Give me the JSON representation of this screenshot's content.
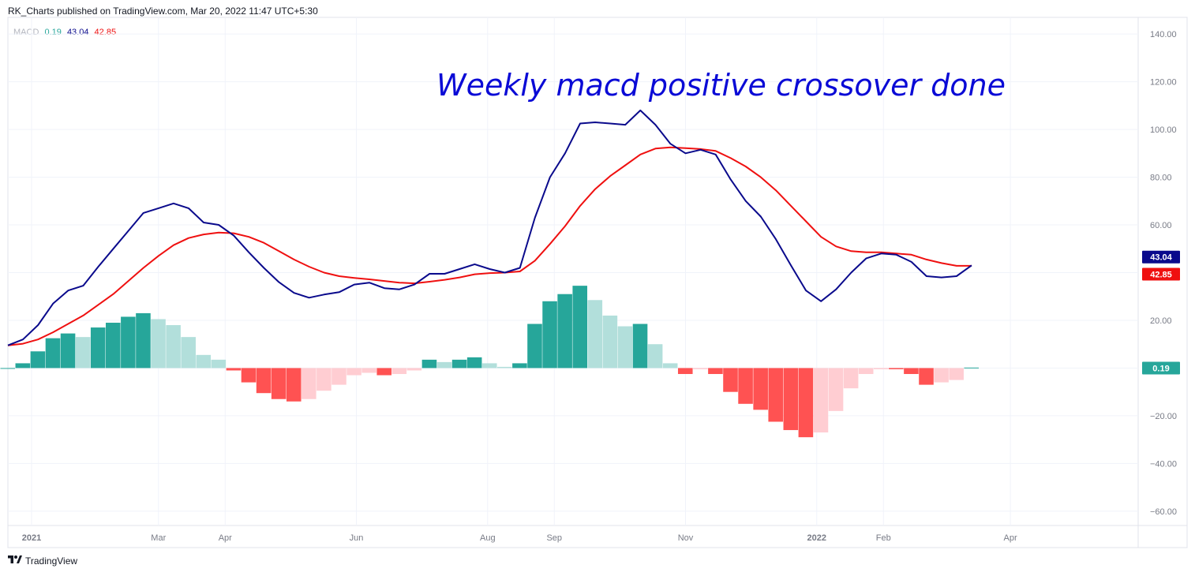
{
  "header": {
    "text": "RK_Charts published on TradingView.com, Mar 20, 2022 11:47 UTC+5:30"
  },
  "legend": {
    "name": "MACD",
    "hist_value": "0.19",
    "macd_value": "43.04",
    "signal_value": "42.85"
  },
  "annotation": "Weekly macd positive crossover done",
  "footer": {
    "brand": "TradingView",
    "logo_icon": "tradingview-logo-icon"
  },
  "colors": {
    "macd": "#0a0a8c",
    "signal": "#ef1010",
    "hist_up_strong": "#26a69a",
    "hist_up_weak": "#b2dfdb",
    "hist_down_strong": "#ff5252",
    "hist_down_weak": "#ffcdd2",
    "grid": "#f0f3fa",
    "axis_text": "#787b86",
    "annotation": "#0a0ad6"
  },
  "chart_data": {
    "type": "line",
    "title": "",
    "xlabel": "",
    "ylabel": "",
    "ylim": [
      -66,
      147
    ],
    "grid": true,
    "y_ticks": [
      140,
      120,
      100,
      80,
      60,
      40,
      20,
      0,
      -20,
      -40,
      -60
    ],
    "y_tick_labels": [
      "140.00",
      "120.00",
      "100.00",
      "80.00",
      "60.00",
      "40.00",
      "20.00",
      "",
      "−20.00",
      "−40.00",
      "−60.00"
    ],
    "x_tick_labels": [
      {
        "label": "2021",
        "x": "2021-01-01"
      },
      {
        "label": "Mar",
        "x": "2021-03-01"
      },
      {
        "label": "Apr",
        "x": "2021-04-01"
      },
      {
        "label": "Jun",
        "x": "2021-06-01"
      },
      {
        "label": "Aug",
        "x": "2021-08-01"
      },
      {
        "label": "Sep",
        "x": "2021-09-01"
      },
      {
        "label": "Nov",
        "x": "2021-11-01"
      },
      {
        "label": "2022",
        "x": "2022-01-01"
      },
      {
        "label": "Feb",
        "x": "2022-02-01"
      },
      {
        "label": "Apr",
        "x": "2022-04-01"
      }
    ],
    "x": [
      "2020-12-21",
      "2020-12-28",
      "2021-01-04",
      "2021-01-11",
      "2021-01-18",
      "2021-01-25",
      "2021-02-01",
      "2021-02-08",
      "2021-02-15",
      "2021-02-22",
      "2021-03-01",
      "2021-03-08",
      "2021-03-15",
      "2021-03-22",
      "2021-03-29",
      "2021-04-05",
      "2021-04-12",
      "2021-04-19",
      "2021-04-26",
      "2021-05-03",
      "2021-05-10",
      "2021-05-17",
      "2021-05-24",
      "2021-05-31",
      "2021-06-07",
      "2021-06-14",
      "2021-06-21",
      "2021-06-28",
      "2021-07-05",
      "2021-07-12",
      "2021-07-19",
      "2021-07-26",
      "2021-08-02",
      "2021-08-09",
      "2021-08-16",
      "2021-08-23",
      "2021-08-30",
      "2021-09-06",
      "2021-09-13",
      "2021-09-20",
      "2021-09-27",
      "2021-10-04",
      "2021-10-11",
      "2021-10-18",
      "2021-10-25",
      "2021-11-01",
      "2021-11-08",
      "2021-11-15",
      "2021-11-22",
      "2021-11-29",
      "2021-12-06",
      "2021-12-13",
      "2021-12-20",
      "2021-12-27",
      "2022-01-03",
      "2022-01-10",
      "2022-01-17",
      "2022-01-24",
      "2022-01-31",
      "2022-02-07",
      "2022-02-14",
      "2022-02-21",
      "2022-02-28",
      "2022-03-07",
      "2022-03-14"
    ],
    "series": [
      {
        "name": "MACD",
        "values": [
          9.5,
          12,
          18,
          27,
          32.5,
          34.5,
          42.5,
          50,
          57.5,
          65,
          67,
          69,
          67,
          61,
          60,
          55.5,
          48.5,
          42,
          36,
          31.5,
          29.5,
          30.8,
          31.8,
          35,
          35.8,
          33.5,
          33,
          35,
          39.5,
          39.5,
          41.5,
          43.5,
          41.5,
          40,
          42,
          63,
          80,
          90,
          102.5,
          103,
          102.5,
          102,
          108,
          102,
          94,
          90,
          91.5,
          89.5,
          79,
          70,
          63.5,
          54,
          43,
          32.5,
          28,
          33,
          40,
          46,
          48,
          47.5,
          44.5,
          38.5,
          38,
          38.5,
          43.04
        ]
      },
      {
        "name": "Signal",
        "values": [
          9.5,
          10.2,
          12,
          15,
          18.5,
          22,
          26.5,
          31,
          36.5,
          42,
          47,
          51.5,
          54.5,
          56,
          56.8,
          56.5,
          55,
          52.5,
          49,
          45.5,
          42.5,
          40,
          38.5,
          37.8,
          37.2,
          36.5,
          35.8,
          35.5,
          36.2,
          37,
          38,
          39.3,
          39.8,
          40,
          40.5,
          45,
          52,
          59.5,
          68,
          75,
          80.5,
          85,
          89.5,
          92,
          92.5,
          92.2,
          91.8,
          91,
          88,
          84.5,
          80,
          74.5,
          68,
          61.5,
          55,
          51,
          49,
          48.5,
          48.5,
          48,
          47.5,
          45.5,
          44,
          42.85,
          42.85
        ]
      }
    ],
    "histogram": [
      0,
      2,
      7,
      12.5,
      14.5,
      13,
      17,
      19,
      21.5,
      23,
      20.5,
      18,
      13,
      5.5,
      3.5,
      -1,
      -6,
      -10.5,
      -13,
      -14,
      -13,
      -9.5,
      -7,
      -3,
      -2,
      -3,
      -2.5,
      -1,
      3.5,
      2.5,
      3.5,
      4.5,
      2,
      0.5,
      2,
      18.5,
      28,
      31,
      34.5,
      28.5,
      22,
      17.5,
      18.5,
      10,
      2,
      -2.5,
      -0.5,
      -2.5,
      -10,
      -15,
      -17.5,
      -22.5,
      -26,
      -29,
      -27,
      -18,
      -8.5,
      -2.5,
      -0.5,
      -0.5,
      -2.5,
      -7,
      -6,
      -5,
      0.19
    ]
  }
}
